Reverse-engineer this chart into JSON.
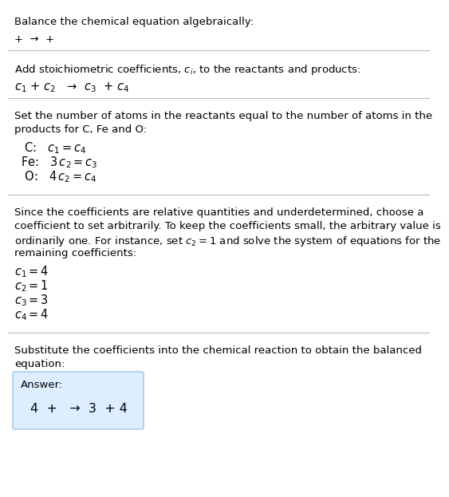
{
  "title": "Balance the chemical equation algebraically:",
  "line1": "+  →  +",
  "section1_title": "Add stoichiometric coefficients, $c_i$, to the reactants and products:",
  "section1_eq": "$c_1$ + $c_2$   →  $c_3$  + $c_4$",
  "section2_title_l1": "Set the number of atoms in the reactants equal to the number of atoms in the",
  "section2_title_l2": "products for C, Fe and O:",
  "section2_lines": [
    " C:   $c_1 = c_4$",
    "Fe:   $3\\,c_2 = c_3$",
    " O:   $4\\,c_2 = c_4$"
  ],
  "section3_intro_l1": "Since the coefficients are relative quantities and underdetermined, choose a",
  "section3_intro_l2": "coefficient to set arbitrarily. To keep the coefficients small, the arbitrary value is",
  "section3_intro_l3": "ordinarily one. For instance, set $c_2 = 1$ and solve the system of equations for the",
  "section3_intro_l4": "remaining coefficients:",
  "section3_lines": [
    "$c_1 = 4$",
    "$c_2 = 1$",
    "$c_3 = 3$",
    "$c_4 = 4$"
  ],
  "section4_title_l1": "Substitute the coefficients into the chemical reaction to obtain the balanced",
  "section4_title_l2": "equation:",
  "answer_label": "Answer:",
  "answer_eq": "4  +   →  3  + 4",
  "bg_color": "#ffffff",
  "answer_box_color": "#ddeeff",
  "answer_box_border": "#aaccee",
  "text_color": "#000000",
  "divider_color": "#bbbbbb",
  "main_fontsize": 9.5,
  "eq_fontsize": 10.5
}
